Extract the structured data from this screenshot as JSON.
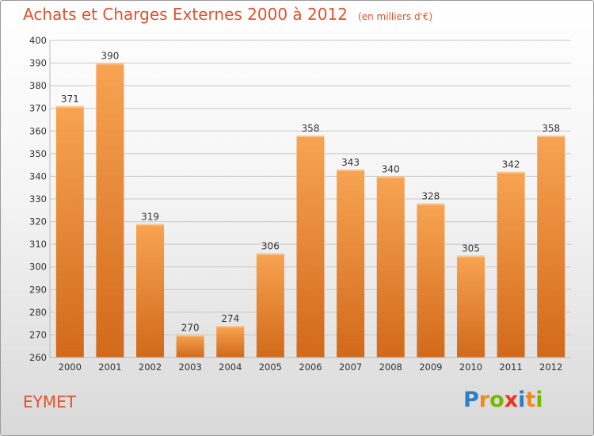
{
  "chart_data": {
    "type": "bar",
    "title": "Achats et Charges Externes 2000 à 2012",
    "subtitle": "(en milliers d'€)",
    "categories": [
      "2000",
      "2001",
      "2002",
      "2003",
      "2004",
      "2005",
      "2006",
      "2007",
      "2008",
      "2009",
      "2010",
      "2011",
      "2012"
    ],
    "values": [
      371,
      390,
      319,
      270,
      274,
      306,
      358,
      343,
      340,
      328,
      305,
      342,
      358
    ],
    "ylim": [
      260,
      400
    ],
    "yticks": [
      260,
      270,
      280,
      290,
      300,
      310,
      320,
      330,
      340,
      350,
      360,
      370,
      380,
      390,
      400
    ],
    "grid": true,
    "bar_color_top": "#f7a452",
    "bar_color_bottom": "#d2691a"
  },
  "commune": "EYMET",
  "logo": {
    "letters": [
      "P",
      "r",
      "o",
      "x",
      "i",
      "t",
      "i"
    ],
    "colors": [
      "#2e7fc1",
      "#f08a1d",
      "#7ab800",
      "#e8371e",
      "#2e7fc1",
      "#f08a1d",
      "#7ab800"
    ]
  },
  "colors": {
    "title": "#e3512b",
    "grid": "#c8c8c8",
    "axis_text": "#333333"
  }
}
